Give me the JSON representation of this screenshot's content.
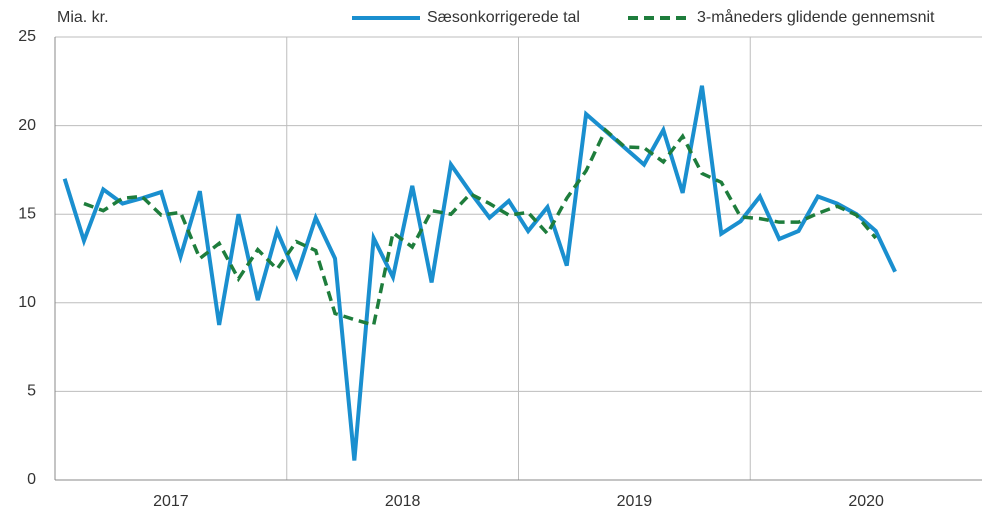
{
  "chart_data": {
    "type": "line",
    "y_unit_label": "Mia. kr.",
    "year_groups": [
      {
        "label": "2017",
        "months": 12
      },
      {
        "label": "2018",
        "months": 12
      },
      {
        "label": "2019",
        "months": 12
      },
      {
        "label": "2020",
        "months": 12
      }
    ],
    "ylim": [
      0,
      25
    ],
    "yticks": [
      0,
      5,
      10,
      15,
      20,
      25
    ],
    "grid": true,
    "series": [
      {
        "name": "Sæsonkorrigerede tal",
        "color": "#1a8fcf",
        "style": "solid",
        "values": [
          17.0,
          13.5,
          16.4,
          15.6,
          15.9,
          16.25,
          12.6,
          16.3,
          8.75,
          15.0,
          10.15,
          14.05,
          11.5,
          14.8,
          12.5,
          1.1,
          13.65,
          11.45,
          16.6,
          11.15,
          17.8,
          16.25,
          14.8,
          15.75,
          14.05,
          15.4,
          12.1,
          20.65,
          19.7,
          18.75,
          17.8,
          19.75,
          16.2,
          22.25,
          13.9,
          14.6,
          16.0,
          13.6,
          14.05,
          16.0,
          15.6,
          15.0,
          14.05,
          11.75
        ]
      },
      {
        "name": "3-måneders glidende gennemsnit",
        "color": "#1e7d3c",
        "style": "dashed",
        "values": [
          null,
          15.6,
          15.2,
          15.9,
          16.0,
          14.95,
          15.1,
          12.5,
          13.35,
          11.35,
          13.0,
          11.9,
          13.45,
          12.95,
          9.4,
          9.05,
          8.75,
          13.95,
          13.15,
          15.2,
          15.0,
          16.15,
          15.6,
          14.95,
          15.1,
          13.9,
          15.9,
          17.45,
          19.75,
          18.8,
          18.75,
          17.95,
          19.4,
          17.3,
          16.8,
          14.85,
          14.75,
          14.55,
          14.55,
          15.05,
          15.45,
          14.95,
          13.65,
          null
        ]
      }
    ]
  }
}
